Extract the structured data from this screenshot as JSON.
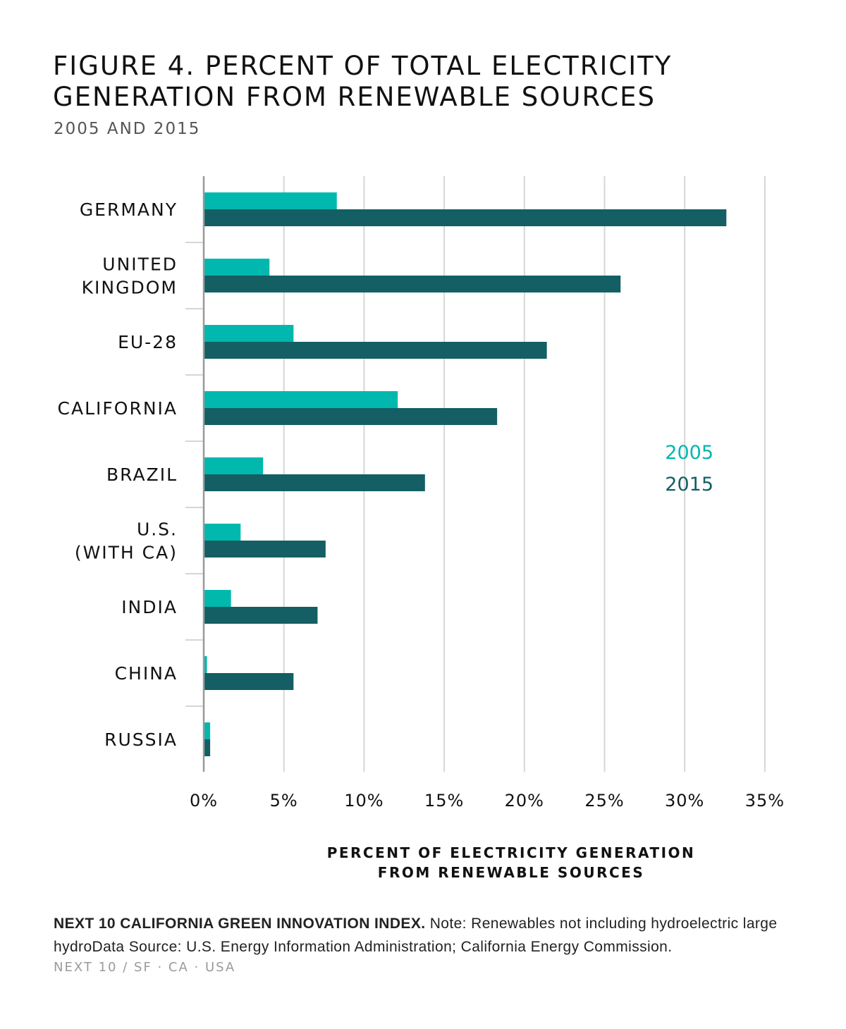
{
  "title": "FIGURE 4. PERCENT OF TOTAL ELECTRICITY GENERATION FROM RENEWABLE SOURCES",
  "subtitle": "2005 AND 2015",
  "legend": {
    "s2005": "2005",
    "s2015": "2015"
  },
  "axis_title": {
    "line1": "PERCENT OF ELECTRICITY GENERATION",
    "line2": "FROM RENEWABLE SOURCES"
  },
  "note": {
    "source_label": "NEXT 10 CALIFORNIA GREEN INNOVATION INDEX.",
    "text": " Note: Renewables not including hydroelectric large hydroData Source: U.S. Energy Information Administration; California Energy Commission."
  },
  "footer": "NEXT 10  /  SF · CA · USA",
  "colors": {
    "s2005": "#00b8ae",
    "s2015": "#135f63",
    "grid": "#d6d6d6",
    "axis": "#999999"
  },
  "chart_data": {
    "type": "bar",
    "orientation": "horizontal",
    "title": "FIGURE 4. PERCENT OF TOTAL ELECTRICITY GENERATION FROM RENEWABLE SOURCES",
    "subtitle": "2005 AND 2015",
    "xlabel": "PERCENT OF ELECTRICITY GENERATION FROM RENEWABLE SOURCES",
    "ylabel": "",
    "xlim": [
      0,
      35
    ],
    "ticks": [
      "0%",
      "5%",
      "10%",
      "15%",
      "20%",
      "25%",
      "30%",
      "35%"
    ],
    "tick_values": [
      0,
      5,
      10,
      15,
      20,
      25,
      30,
      35
    ],
    "grid": true,
    "legend_position": "right",
    "categories": [
      [
        "GERMANY"
      ],
      [
        "UNITED",
        "KINGDOM"
      ],
      [
        "EU-28"
      ],
      [
        "CALIFORNIA"
      ],
      [
        "BRAZIL"
      ],
      [
        "U.S.",
        "(WITH CA)"
      ],
      [
        "INDIA"
      ],
      [
        "CHINA"
      ],
      [
        "RUSSIA"
      ]
    ],
    "series": [
      {
        "name": "2005",
        "values": [
          8.3,
          4.1,
          5.6,
          12.1,
          3.7,
          2.3,
          1.7,
          0.2,
          0.4
        ]
      },
      {
        "name": "2015",
        "values": [
          32.6,
          26.0,
          21.4,
          18.3,
          13.8,
          7.6,
          7.1,
          5.6,
          0.4
        ]
      }
    ]
  }
}
